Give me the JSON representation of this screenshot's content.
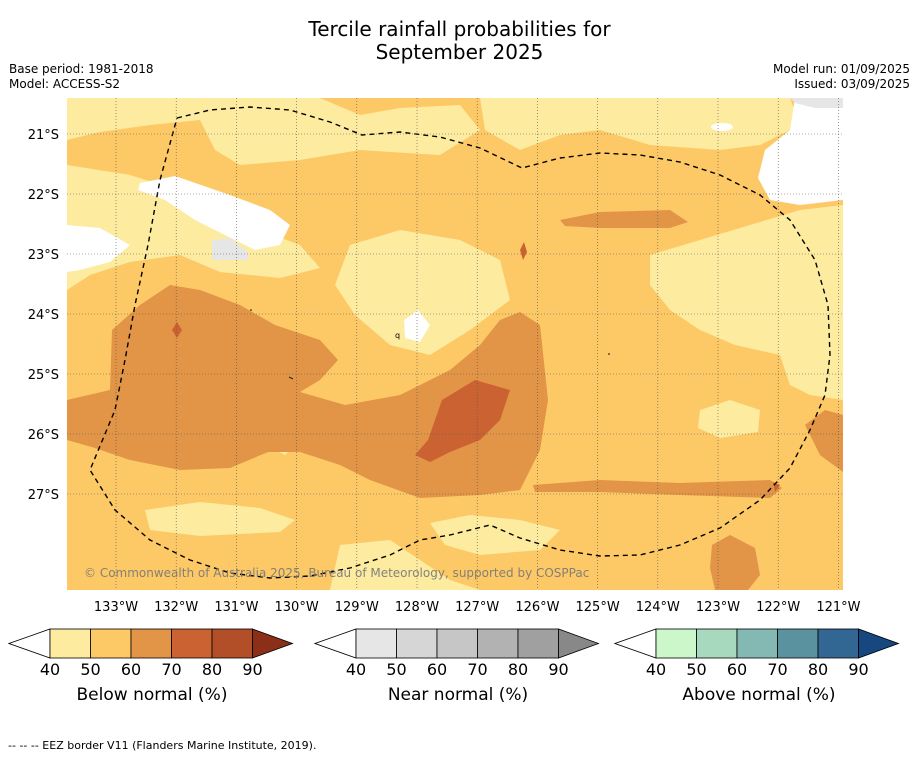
{
  "title_line1": "Tercile rainfall probabilities for",
  "title_line2": "September 2025",
  "meta_left": [
    "Base period: 1981-2018",
    "Model: ACCESS-S2"
  ],
  "meta_right": [
    "Model run: 01/09/2025",
    "Issued: 03/09/2025"
  ],
  "map": {
    "lat_labels": [
      "21°S",
      "22°S",
      "23°S",
      "24°S",
      "25°S",
      "26°S",
      "27°S"
    ],
    "lon_labels": [
      "133°W",
      "132°W",
      "131°W",
      "130°W",
      "129°W",
      "128°W",
      "127°W",
      "126°W",
      "125°W",
      "124°W",
      "123°W",
      "122°W",
      "121°W"
    ],
    "copyright": "© Commonwealth of Australia 2025, Bureau of Meteorology, supported by COSPPac",
    "stray_label": "q",
    "colors": {
      "below_40_50": "#fdeba0",
      "below_50_60": "#fdc966",
      "below_60_70": "#e29447",
      "below_70_80": "#cb6232",
      "near_40_50": "#e6e6e6"
    }
  },
  "colorbars": [
    {
      "title": "Below normal (%)",
      "ticks": [
        "40",
        "50",
        "60",
        "70",
        "80",
        "90"
      ],
      "colors": [
        "#ffffff",
        "#fdeba0",
        "#fdc966",
        "#e29447",
        "#cb6232",
        "#b24e28",
        "#8b2f19"
      ]
    },
    {
      "title": "Near normal (%)",
      "ticks": [
        "40",
        "50",
        "60",
        "70",
        "80",
        "90"
      ],
      "colors": [
        "#ffffff",
        "#e6e6e6",
        "#d6d6d6",
        "#c6c6c6",
        "#b2b2b2",
        "#a0a0a0",
        "#888888"
      ]
    },
    {
      "title": "Above normal (%)",
      "ticks": [
        "40",
        "50",
        "60",
        "70",
        "80",
        "90"
      ],
      "colors": [
        "#ffffff",
        "#cbf7cb",
        "#a6d9be",
        "#84b8b3",
        "#5a92a0",
        "#326794",
        "#17477f"
      ]
    }
  ],
  "footer": "--  --  -- EEZ border V11 (Flanders Marine Institute, 2019)."
}
